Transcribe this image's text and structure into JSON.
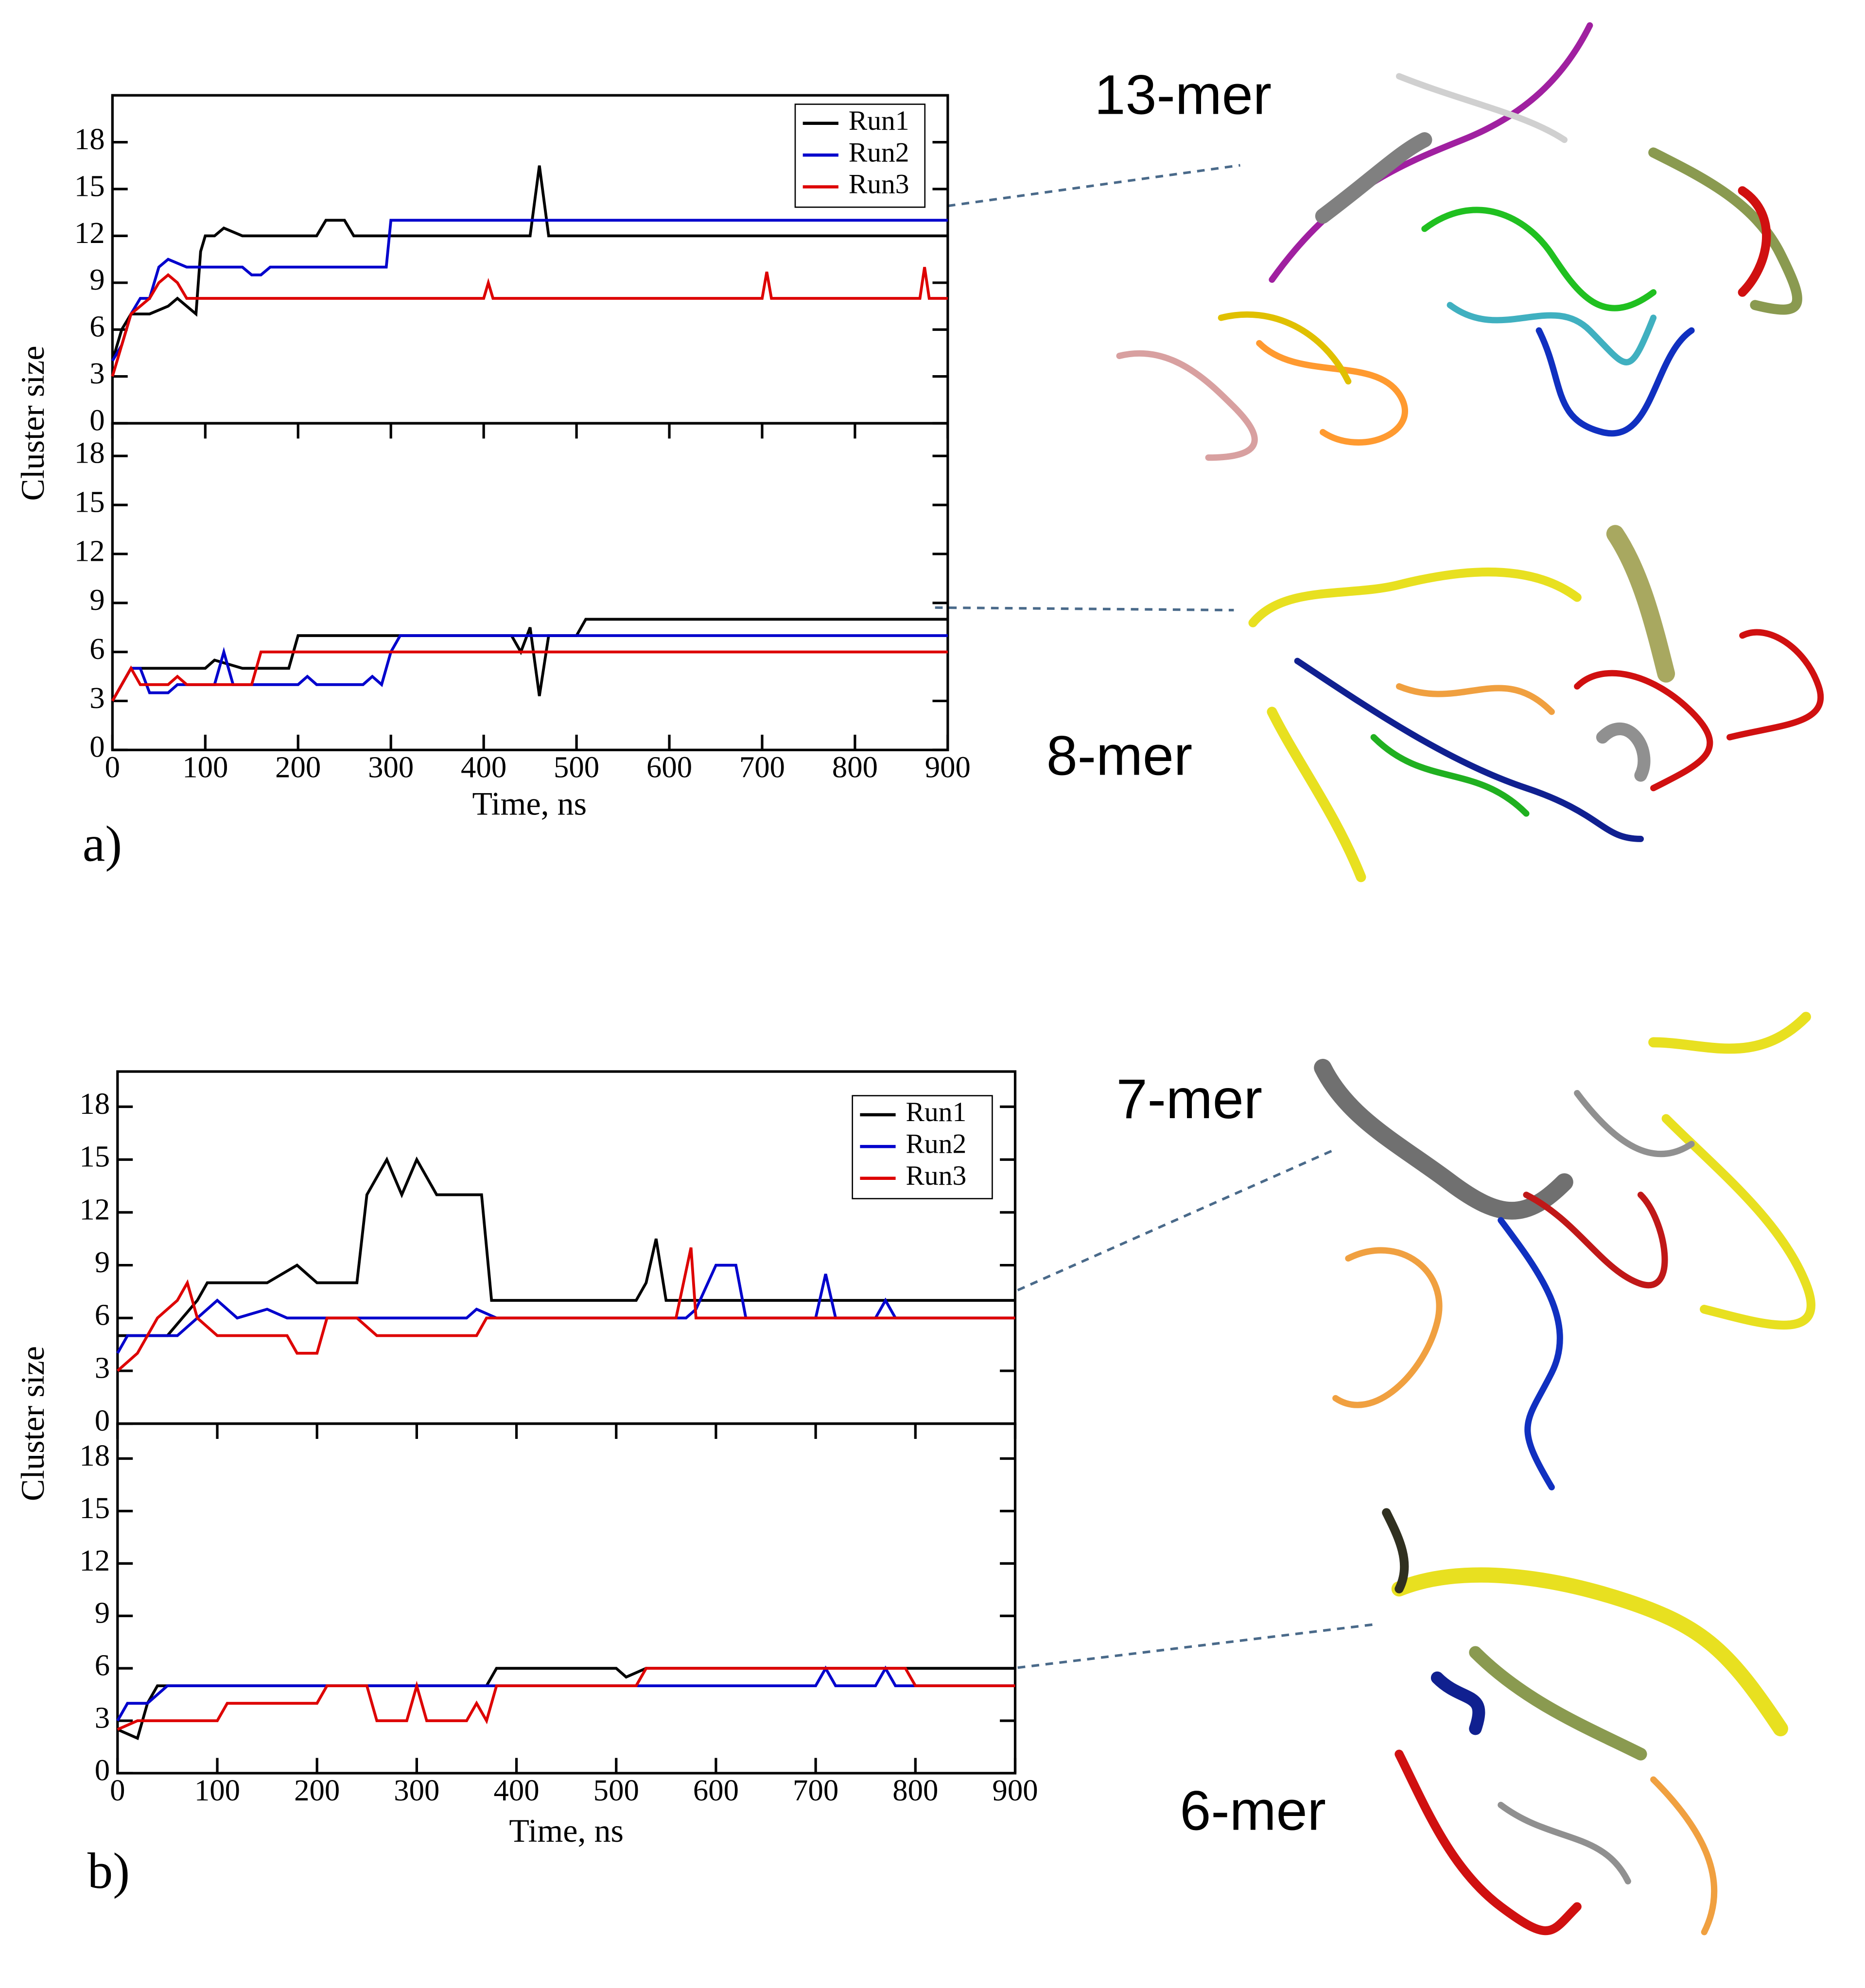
{
  "chart_data": [
    {
      "type": "line",
      "ylabel": "Cluster size",
      "annotation": "13-mer",
      "legend": "upper right",
      "xlim": [
        0,
        900
      ],
      "ylim": [
        0,
        21
      ],
      "yticks": [
        0,
        3,
        6,
        9,
        12,
        15,
        18
      ],
      "series": [
        {
          "name": "Run1",
          "color": "#000000",
          "x": [
            0,
            10,
            20,
            40,
            60,
            70,
            80,
            90,
            95,
            100,
            110,
            120,
            140,
            220,
            230,
            250,
            260,
            450,
            460,
            470,
            900
          ],
          "values": [
            4,
            6,
            7,
            7,
            7.5,
            8,
            7.5,
            7,
            11,
            12,
            12,
            12.5,
            12,
            12,
            13,
            13,
            12,
            12,
            16.5,
            12,
            12
          ]
        },
        {
          "name": "Run2",
          "color": "#0000cc",
          "x": [
            0,
            10,
            20,
            30,
            40,
            50,
            60,
            80,
            140,
            150,
            160,
            170,
            295,
            300,
            900
          ],
          "values": [
            4,
            5,
            7,
            8,
            8,
            10,
            10.5,
            10,
            10,
            9.5,
            9.5,
            10,
            10,
            13,
            13
          ]
        },
        {
          "name": "Run3",
          "color": "#dd0000",
          "x": [
            0,
            10,
            20,
            40,
            50,
            60,
            70,
            80,
            400,
            405,
            410,
            700,
            705,
            710,
            870,
            875,
            880,
            900
          ],
          "values": [
            3,
            5,
            7,
            8,
            9,
            9.5,
            9,
            8,
            8,
            9,
            8,
            8,
            9.7,
            8,
            8,
            10,
            8,
            8
          ]
        }
      ]
    },
    {
      "type": "line",
      "xlabel": "Time, ns",
      "annotation": "8-mer",
      "panel_label": "a)",
      "xlim": [
        0,
        900
      ],
      "xticks": [
        0,
        100,
        200,
        300,
        400,
        500,
        600,
        700,
        800,
        900
      ],
      "ylim": [
        0,
        20
      ],
      "yticks": [
        0,
        3,
        6,
        9,
        12,
        15,
        18
      ],
      "series": [
        {
          "color": "#000000",
          "x": [
            0,
            20,
            30,
            40,
            100,
            110,
            140,
            190,
            200,
            300,
            430,
            440,
            450,
            460,
            470,
            500,
            510,
            900
          ],
          "values": [
            3,
            5,
            5,
            5,
            5,
            5.5,
            5,
            5,
            7,
            7,
            7,
            6,
            7.5,
            3.3,
            7,
            7,
            8,
            8
          ]
        },
        {
          "color": "#0000cc",
          "x": [
            0,
            10,
            20,
            30,
            40,
            60,
            70,
            110,
            120,
            130,
            200,
            210,
            220,
            270,
            280,
            290,
            300,
            310,
            900
          ],
          "values": [
            3,
            4,
            5,
            5,
            3.5,
            3.5,
            4,
            4,
            6,
            4,
            4,
            4.5,
            4,
            4,
            4.5,
            4,
            6,
            7,
            7
          ]
        },
        {
          "color": "#dd0000",
          "x": [
            0,
            10,
            20,
            30,
            60,
            70,
            80,
            150,
            160,
            900
          ],
          "values": [
            3,
            4,
            5,
            4,
            4,
            4.5,
            4,
            4,
            6,
            6
          ]
        }
      ]
    },
    {
      "type": "line",
      "ylabel": "Cluster size",
      "annotation": "7-mer",
      "legend": "upper right",
      "xlim": [
        0,
        900
      ],
      "ylim": [
        0,
        20
      ],
      "yticks": [
        0,
        3,
        6,
        9,
        12,
        15,
        18
      ],
      "series": [
        {
          "name": "Run1",
          "color": "#000000",
          "x": [
            0,
            10,
            50,
            80,
            90,
            150,
            180,
            200,
            240,
            250,
            270,
            285,
            300,
            320,
            365,
            375,
            520,
            530,
            540,
            550,
            900
          ],
          "values": [
            5,
            5,
            5,
            7,
            8,
            8,
            9,
            8,
            8,
            13,
            15,
            13,
            15,
            13,
            13,
            7,
            7,
            8,
            10.5,
            7,
            7
          ]
        },
        {
          "name": "Run2",
          "color": "#0000cc",
          "x": [
            0,
            10,
            60,
            80,
            100,
            120,
            150,
            170,
            350,
            360,
            380,
            570,
            580,
            600,
            620,
            630,
            700,
            710,
            720,
            760,
            770,
            780,
            900
          ],
          "values": [
            4,
            5,
            5,
            6,
            7,
            6,
            6.5,
            6,
            6,
            6.5,
            6,
            6,
            6.5,
            9,
            9,
            6,
            6,
            8.5,
            6,
            6,
            7,
            6,
            6
          ]
        },
        {
          "name": "Run3",
          "color": "#dd0000",
          "x": [
            0,
            20,
            40,
            60,
            70,
            80,
            100,
            170,
            180,
            200,
            210,
            240,
            260,
            360,
            370,
            560,
            575,
            580,
            900
          ],
          "values": [
            3,
            4,
            6,
            7,
            8,
            6,
            5,
            5,
            4,
            4,
            6,
            6,
            5,
            5,
            6,
            6,
            10,
            6,
            6
          ]
        }
      ]
    },
    {
      "type": "line",
      "xlabel": "Time, ns",
      "annotation": "6-mer",
      "panel_label": "b)",
      "xlim": [
        0,
        900
      ],
      "xticks": [
        0,
        100,
        200,
        300,
        400,
        500,
        600,
        700,
        800,
        900
      ],
      "ylim": [
        0,
        20
      ],
      "yticks": [
        0,
        3,
        6,
        9,
        12,
        15,
        18
      ],
      "series": [
        {
          "color": "#000000",
          "x": [
            0,
            20,
            30,
            40,
            100,
            200,
            370,
            380,
            500,
            510,
            530,
            900
          ],
          "values": [
            2.5,
            2,
            4,
            5,
            5,
            5,
            5,
            6,
            6,
            5.5,
            6,
            6
          ]
        },
        {
          "color": "#0000cc",
          "x": [
            0,
            10,
            30,
            50,
            240,
            280,
            700,
            710,
            720,
            760,
            770,
            780,
            900
          ],
          "values": [
            3,
            4,
            4,
            5,
            5,
            5,
            5,
            6,
            5,
            5,
            6,
            5,
            5
          ]
        },
        {
          "color": "#dd0000",
          "x": [
            0,
            20,
            100,
            110,
            200,
            210,
            250,
            260,
            290,
            300,
            310,
            350,
            360,
            370,
            380,
            520,
            530,
            790,
            800,
            900
          ],
          "values": [
            2.5,
            3,
            3,
            4,
            4,
            5,
            5,
            3,
            3,
            5,
            3,
            3,
            4,
            3,
            5,
            5,
            6,
            6,
            5,
            5
          ]
        }
      ]
    }
  ]
}
